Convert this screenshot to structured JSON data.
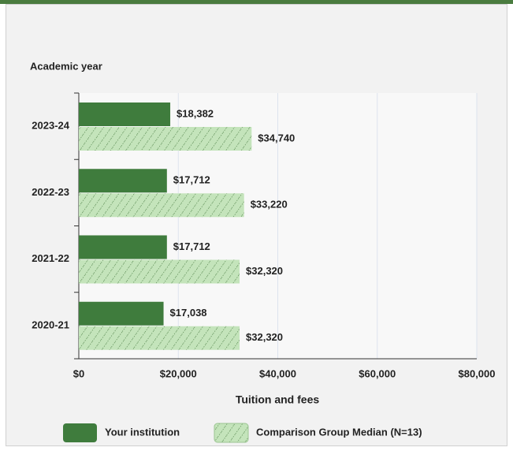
{
  "chart_data": {
    "type": "bar",
    "orientation": "horizontal",
    "y_axis_title": "Academic year",
    "x_axis_title": "Tuition and fees",
    "categories": [
      "2023-24",
      "2022-23",
      "2021-22",
      "2020-21"
    ],
    "series": [
      {
        "name": "Your institution",
        "color": "#3f7c3d",
        "values": [
          18382,
          17712,
          17712,
          17038
        ],
        "value_labels": [
          "$18,382",
          "$17,712",
          "$17,712",
          "$17,038"
        ]
      },
      {
        "name": "Comparison Group Median (N=13)",
        "color": "#c4e4bb",
        "pattern": "hatch",
        "values": [
          34740,
          33220,
          32320,
          32320
        ],
        "value_labels": [
          "$34,740",
          "$33,220",
          "$32,320",
          "$32,320"
        ]
      }
    ],
    "xlim": [
      0,
      80000
    ],
    "xticks": [
      {
        "value": 0,
        "label": "$0"
      },
      {
        "value": 20000,
        "label": "$20,000"
      },
      {
        "value": 40000,
        "label": "$40,000"
      },
      {
        "value": 60000,
        "label": "$60,000"
      },
      {
        "value": 80000,
        "label": "$80,000"
      }
    ],
    "grid": true
  }
}
